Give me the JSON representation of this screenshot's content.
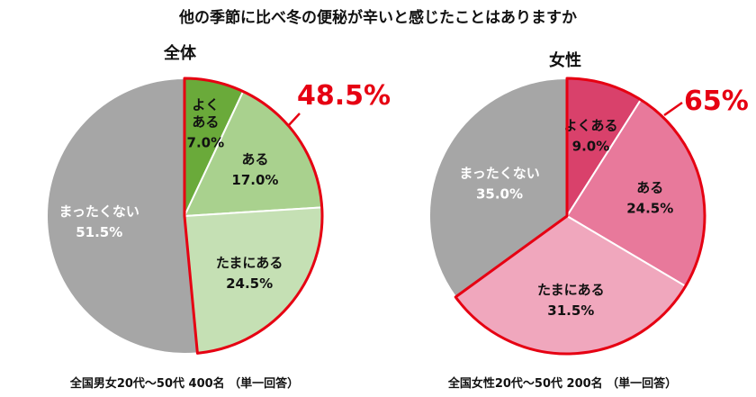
{
  "title": "他の季節に比べ冬の便秘が辛いと感じたことはありますか",
  "chart_data": [
    {
      "type": "pie",
      "title": "全体",
      "highlight_total": "48.5%",
      "footnote": "全国男女20代～50代 400名 （単一回答）",
      "slices": [
        {
          "label": "よく\nある",
          "value": 7.0,
          "value_text": "7.0%",
          "color": "#6aaa3a",
          "text_color": "#111111"
        },
        {
          "label": "ある",
          "value": 17.0,
          "value_text": "17.0%",
          "color": "#a9d18e",
          "text_color": "#111111"
        },
        {
          "label": "たまにある",
          "value": 24.5,
          "value_text": "24.5%",
          "color": "#c5e0b4",
          "text_color": "#111111"
        },
        {
          "label": "まったくない",
          "value": 51.5,
          "value_text": "51.5%",
          "color": "#a6a6a6",
          "text_color": "#ffffff"
        }
      ]
    },
    {
      "type": "pie",
      "title": "女性",
      "highlight_total": "65%",
      "footnote": "全国女性20代～50代 200名 （単一回答）",
      "slices": [
        {
          "label": "よくある",
          "value": 9.0,
          "value_text": "9.0%",
          "color": "#d9416b",
          "text_color": "#111111"
        },
        {
          "label": "ある",
          "value": 24.5,
          "value_text": "24.5%",
          "color": "#e8799b",
          "text_color": "#111111"
        },
        {
          "label": "たまにある",
          "value": 31.5,
          "value_text": "31.5%",
          "color": "#f0a7bd",
          "text_color": "#111111"
        },
        {
          "label": "まったくない",
          "value": 35.0,
          "value_text": "35.0%",
          "color": "#a6a6a6",
          "text_color": "#ffffff"
        }
      ]
    }
  ],
  "highlight_color": "#e60012"
}
